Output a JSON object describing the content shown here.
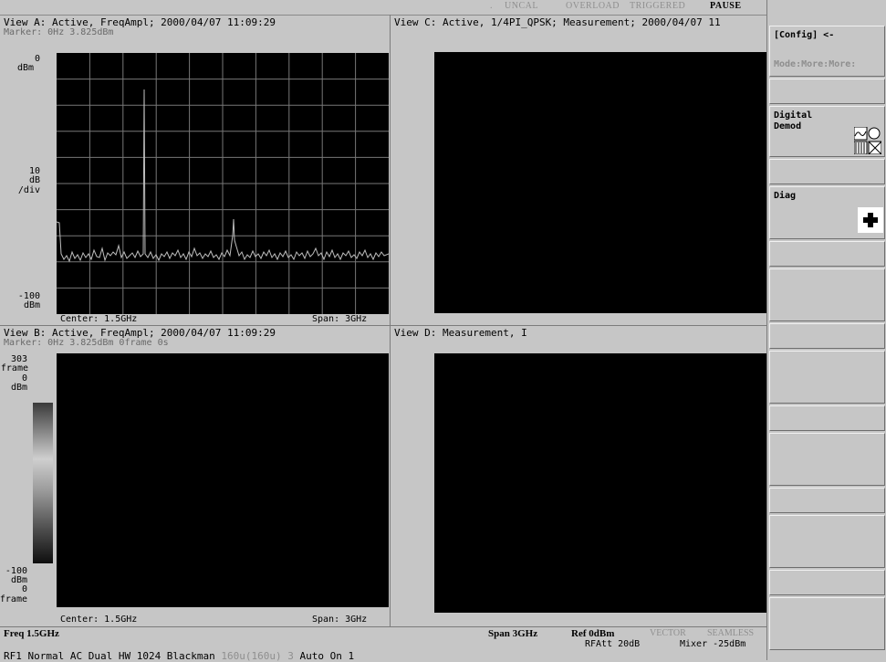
{
  "status": {
    "uncal": "UNCAL",
    "overload": "OVERLOAD",
    "triggered": "TRIGGERED",
    "pause": "PAUSE"
  },
  "viewA": {
    "title": "View A: Active, FreqAmpl; 2000/04/07 11:09:29",
    "marker": "Marker: 0Hz  3.825dBm",
    "y_top": "0",
    "y_top_unit": "dBm",
    "y_mid1": "10",
    "y_mid2": "dB",
    "y_mid3": "/div",
    "y_bot": "-100",
    "y_bot_unit": "dBm",
    "center": "Center: 1.5GHz",
    "span": "Span: 3GHz"
  },
  "viewB": {
    "title": "View B: Active, FreqAmpl; 2000/04/07 11:09:29",
    "marker": "Marker: 0Hz  3.825dBm  0frame  0s",
    "y_top": "303",
    "y_top_unit": "frame",
    "y_top2": "0",
    "y_top2_unit": "dBm",
    "y_bot": "-100",
    "y_bot_unit": "dBm",
    "y_bot2": "0",
    "y_bot2_unit": "frame",
    "center": "Center: 1.5GHz",
    "span": "Span: 3GHz"
  },
  "viewC": {
    "title": "View C: Active, 1/4PI_QPSK; Measurement; 2000/04/07 11"
  },
  "viewD": {
    "title": "View D: Measurement, I"
  },
  "softkeys": {
    "config": "[Config] <-",
    "mode_path": "Mode:More:More:",
    "digital_demod": "Digital\nDemod",
    "diag": "Diag"
  },
  "bottom": {
    "freq": "Freq 1.5GHz",
    "span": "Span 3GHz",
    "ref": "Ref 0dBm",
    "vector": "VECTOR",
    "seamless": "SEAMLESS",
    "rfatt": "RFAtt 20dB",
    "mixer": "Mixer -25dBm",
    "line2_a": "RF1 Normal AC Dual HW 1024 Blackman ",
    "line2_b": "160u(160u)",
    "line2_c": " 3 ",
    "line2_d": "Auto On 1"
  }
}
